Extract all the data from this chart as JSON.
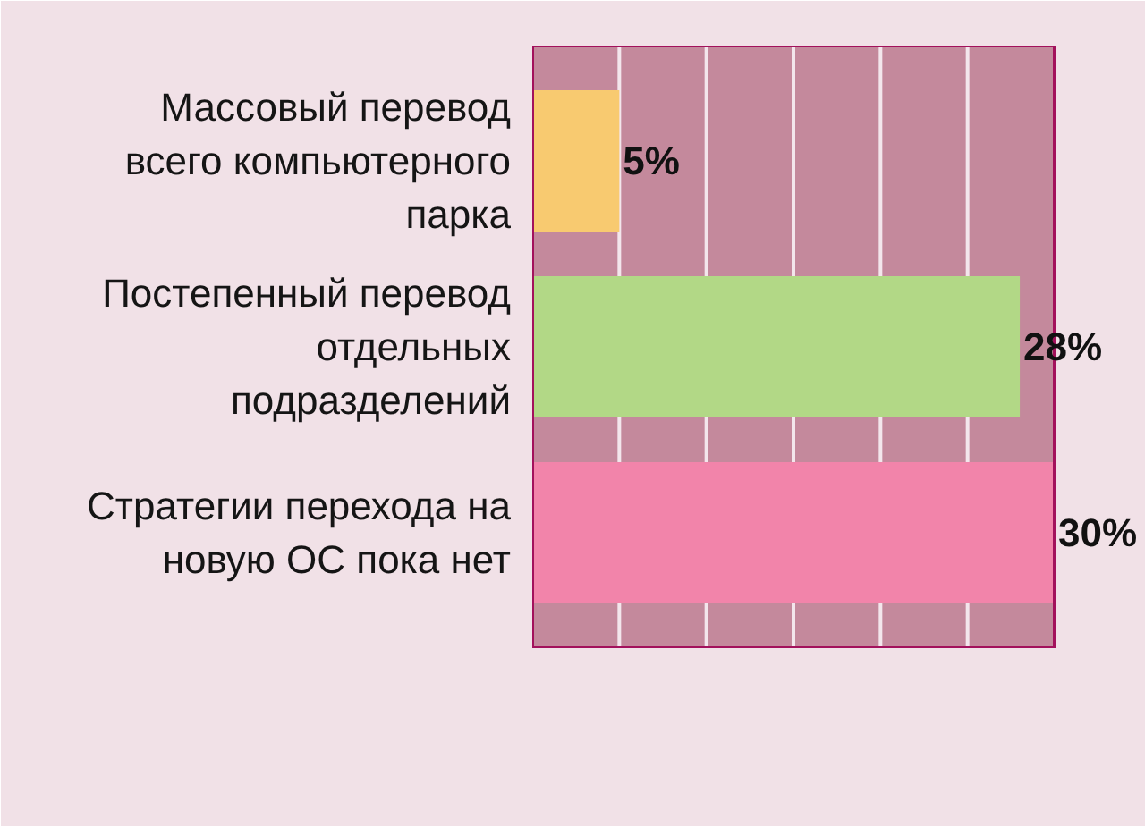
{
  "chart_data": {
    "type": "bar",
    "orientation": "horizontal",
    "categories": [
      "Массовый перевод\nвсего компьютерного\nпарка",
      "Постепенный перевод\nотдельных\nподразделений",
      "Стратегии перехода на\nновую ОС пока нет"
    ],
    "values": [
      5,
      28,
      30
    ],
    "colors": [
      "#f8ca70",
      "#b2d886",
      "#f284aa"
    ],
    "value_labels": [
      "5%",
      "28%",
      "30%"
    ],
    "xlim": [
      0,
      30
    ],
    "xticks": [
      {
        "value": 5,
        "label": null
      },
      {
        "value": 10,
        "label": null
      },
      {
        "value": 15,
        "label": null
      },
      {
        "value": 20,
        "label": null
      },
      {
        "value": 25,
        "label": null
      }
    ],
    "grid": "x",
    "tick_labels": "y"
  }
}
